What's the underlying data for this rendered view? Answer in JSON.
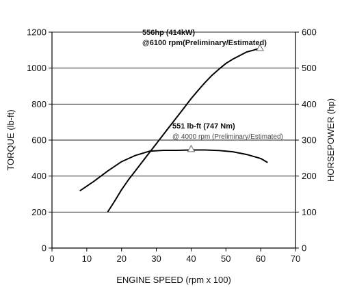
{
  "chart_data": {
    "type": "line",
    "xlabel": "ENGINE SPEED (rpm x 100)",
    "ylabel_left": "TORQUE (lb-ft)",
    "ylabel_right": "HORSEPOWER (hp)",
    "x_ticks": [
      0,
      10,
      20,
      30,
      40,
      50,
      60,
      70
    ],
    "y_left_ticks": [
      0,
      200,
      400,
      600,
      800,
      1000,
      1200
    ],
    "y_right_ticks": [
      0,
      100,
      200,
      300,
      400,
      500,
      600
    ],
    "xlim": [
      0,
      70
    ],
    "ylim_left": [
      0,
      1200
    ],
    "ylim_right": [
      0,
      600
    ],
    "grid": "horizontal",
    "series": [
      {
        "name": "Torque",
        "axis": "left",
        "x": [
          8,
          12,
          16,
          20,
          24,
          28,
          32,
          36,
          40,
          44,
          48,
          52,
          56,
          60,
          62
        ],
        "y": [
          318,
          370,
          428,
          480,
          515,
          538,
          543,
          543,
          545,
          545,
          542,
          535,
          520,
          498,
          475
        ]
      },
      {
        "name": "Horsepower",
        "axis": "right",
        "x": [
          16,
          18,
          20,
          22,
          24,
          26,
          28,
          30,
          32,
          34,
          36,
          38,
          40,
          42,
          44,
          46,
          48,
          50,
          52,
          54,
          56,
          58,
          60
        ],
        "y": [
          100,
          130,
          162,
          190,
          215,
          240,
          265,
          290,
          315,
          340,
          365,
          390,
          415,
          438,
          460,
          480,
          497,
          513,
          525,
          535,
          545,
          550,
          556
        ]
      }
    ],
    "annotations": [
      {
        "line1": "556hp (414kW)",
        "line2": "@6100 rpm(Preliminary/Estimated)",
        "marker_x": 59.8,
        "marker_y": 556,
        "axis": "right"
      },
      {
        "line1": "551 lb-ft (747 Nm)",
        "line2": "@ 4000 rpm (Preliminary/Estimated)",
        "marker_x": 40,
        "marker_y": 551,
        "axis": "left"
      }
    ]
  }
}
